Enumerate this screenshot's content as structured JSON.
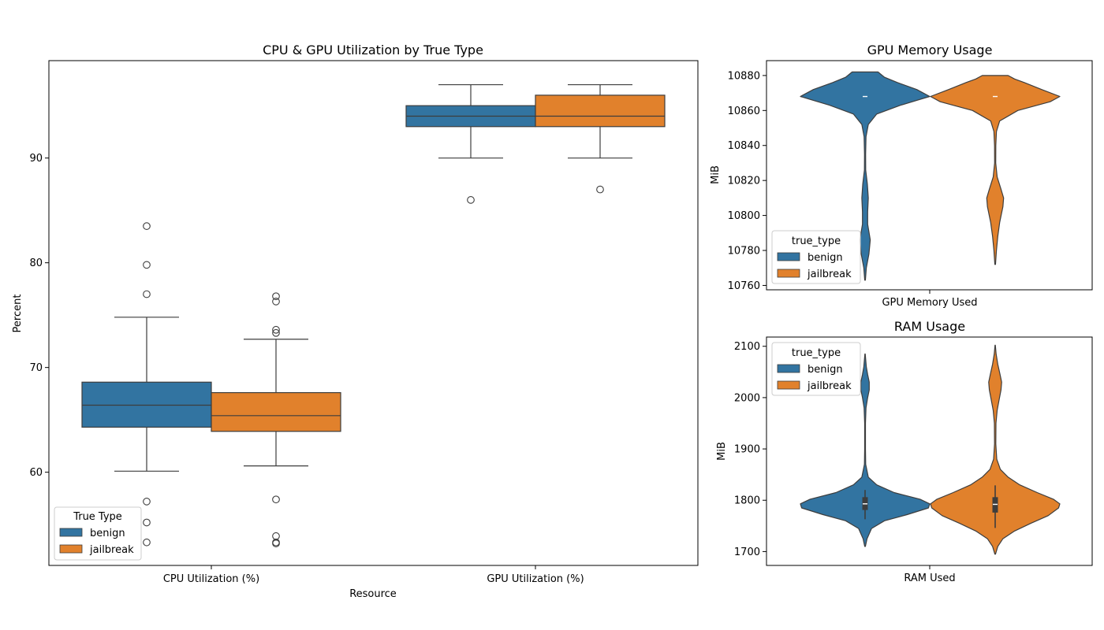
{
  "colors": {
    "benign": "#3274a1",
    "jailbreak": "#e1812c",
    "edge": "#3d3d3d",
    "axis": "#000000"
  },
  "chart_data": [
    {
      "id": "util",
      "type": "box",
      "title": "CPU & GPU Utilization by True Type",
      "xlabel": "Resource",
      "ylabel": "Percent",
      "categories": [
        "CPU Utilization (%)",
        "GPU Utilization (%)"
      ],
      "ylim": [
        51.1,
        99.3
      ],
      "yticks": [
        60,
        70,
        80,
        90
      ],
      "legend": {
        "title": "True Type",
        "placement": "lower-left",
        "entries": [
          "benign",
          "jailbreak"
        ]
      },
      "series": [
        {
          "name": "benign",
          "boxes": [
            {
              "whislo": 60.1,
              "q1": 64.3,
              "med": 66.4,
              "q3": 68.6,
              "whishi": 74.8,
              "fliers": [
                83.5,
                79.8,
                77.0,
                57.2,
                55.2,
                53.3
              ]
            },
            {
              "whislo": 90.0,
              "q1": 93.0,
              "med": 94.0,
              "q3": 95.0,
              "whishi": 97.0,
              "fliers": [
                86.0
              ]
            }
          ]
        },
        {
          "name": "jailbreak",
          "boxes": [
            {
              "whislo": 60.6,
              "q1": 63.9,
              "med": 65.4,
              "q3": 67.6,
              "whishi": 72.7,
              "fliers": [
                76.8,
                76.3,
                73.6,
                73.3,
                57.4,
                53.9,
                53.3,
                53.2
              ]
            },
            {
              "whislo": 90.0,
              "q1": 93.0,
              "med": 94.0,
              "q3": 96.0,
              "whishi": 97.0,
              "fliers": [
                87.0
              ]
            }
          ]
        }
      ]
    },
    {
      "id": "gpumem",
      "type": "violin",
      "title": "GPU Memory Usage",
      "xlabel": "GPU Memory Used",
      "ylabel": "MiB",
      "ylim": [
        10757.5,
        10888.5
      ],
      "yticks": [
        10760,
        10780,
        10800,
        10820,
        10840,
        10860,
        10880
      ],
      "legend": {
        "title": "true_type",
        "placement": "lower-left",
        "entries": [
          "benign",
          "jailbreak"
        ]
      },
      "series": [
        {
          "name": "benign",
          "median": 10868,
          "q1": 10868,
          "q3": 10868,
          "density": [
            [
              10763,
              0.005
            ],
            [
              10770,
              0.02
            ],
            [
              10778,
              0.06
            ],
            [
              10786,
              0.08
            ],
            [
              10795,
              0.04
            ],
            [
              10802,
              0.04
            ],
            [
              10810,
              0.05
            ],
            [
              10818,
              0.035
            ],
            [
              10826,
              0.01
            ],
            [
              10835,
              0.008
            ],
            [
              10845,
              0.015
            ],
            [
              10852,
              0.05
            ],
            [
              10858,
              0.18
            ],
            [
              10863,
              0.55
            ],
            [
              10868,
              1.0
            ],
            [
              10872,
              0.8
            ],
            [
              10876,
              0.5
            ],
            [
              10879,
              0.3
            ],
            [
              10882,
              0.2
            ]
          ]
        },
        {
          "name": "jailbreak",
          "median": 10868,
          "q1": 10868,
          "q3": 10868,
          "density": [
            [
              10772,
              0.005
            ],
            [
              10780,
              0.02
            ],
            [
              10788,
              0.04
            ],
            [
              10796,
              0.07
            ],
            [
              10805,
              0.12
            ],
            [
              10810,
              0.13
            ],
            [
              10815,
              0.09
            ],
            [
              10822,
              0.03
            ],
            [
              10830,
              0.008
            ],
            [
              10840,
              0.01
            ],
            [
              10848,
              0.02
            ],
            [
              10854,
              0.07
            ],
            [
              10860,
              0.35
            ],
            [
              10865,
              0.85
            ],
            [
              10868,
              1.0
            ],
            [
              10872,
              0.72
            ],
            [
              10876,
              0.45
            ],
            [
              10878,
              0.3
            ],
            [
              10880,
              0.2
            ]
          ]
        }
      ]
    },
    {
      "id": "ram",
      "type": "violin",
      "title": "RAM Usage",
      "xlabel": "RAM Used",
      "ylabel": "MiB",
      "ylim": [
        1673,
        2118
      ],
      "yticks": [
        1700,
        1800,
        1900,
        2000,
        2100
      ],
      "legend": {
        "title": "true_type",
        "placement": "upper-left",
        "entries": [
          "benign",
          "jailbreak"
        ]
      },
      "series": [
        {
          "name": "benign",
          "median": 1793,
          "q1": 1781,
          "q3": 1806,
          "whislo": 1763,
          "whishi": 1820,
          "density": [
            [
              1710,
              0.005
            ],
            [
              1725,
              0.03
            ],
            [
              1745,
              0.1
            ],
            [
              1760,
              0.3
            ],
            [
              1772,
              0.65
            ],
            [
              1785,
              0.98
            ],
            [
              1793,
              1.0
            ],
            [
              1802,
              0.85
            ],
            [
              1815,
              0.45
            ],
            [
              1830,
              0.18
            ],
            [
              1845,
              0.05
            ],
            [
              1870,
              0.01
            ],
            [
              1900,
              0.006
            ],
            [
              1950,
              0.006
            ],
            [
              1980,
              0.015
            ],
            [
              2000,
              0.04
            ],
            [
              2015,
              0.065
            ],
            [
              2030,
              0.065
            ],
            [
              2045,
              0.04
            ],
            [
              2060,
              0.02
            ],
            [
              2085,
              0.003
            ]
          ]
        },
        {
          "name": "jailbreak",
          "median": 1792,
          "q1": 1776,
          "q3": 1806,
          "whislo": 1746,
          "whishi": 1829,
          "density": [
            [
              1695,
              0.005
            ],
            [
              1710,
              0.04
            ],
            [
              1725,
              0.12
            ],
            [
              1740,
              0.3
            ],
            [
              1755,
              0.55
            ],
            [
              1770,
              0.82
            ],
            [
              1785,
              0.98
            ],
            [
              1793,
              1.0
            ],
            [
              1802,
              0.9
            ],
            [
              1815,
              0.65
            ],
            [
              1830,
              0.38
            ],
            [
              1845,
              0.2
            ],
            [
              1860,
              0.08
            ],
            [
              1880,
              0.025
            ],
            [
              1910,
              0.01
            ],
            [
              1950,
              0.012
            ],
            [
              1975,
              0.03
            ],
            [
              1995,
              0.06
            ],
            [
              2015,
              0.09
            ],
            [
              2030,
              0.1
            ],
            [
              2045,
              0.075
            ],
            [
              2065,
              0.04
            ],
            [
              2085,
              0.015
            ],
            [
              2102,
              0.003
            ]
          ]
        }
      ]
    }
  ]
}
